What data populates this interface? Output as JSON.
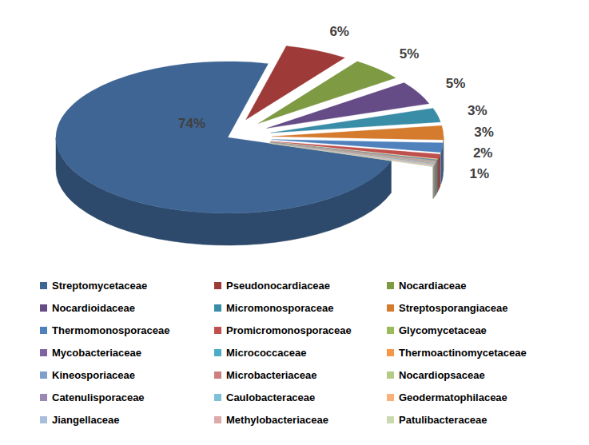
{
  "chart_data": {
    "type": "pie",
    "categories": [
      "Streptomycetaceae",
      "Pseudonocardiaceae",
      "Nocardiaceae",
      "Nocardioidaceae",
      "Micromonosporaceae",
      "Streptosporangiaceae",
      "Thermomonosporaceae",
      "Promicromonosporaceae",
      "Glycomycetaceae",
      "Mycobacteriaceae",
      "Micrococcaceae",
      "Thermoactinomycetaceae",
      "Kineosporiaceae",
      "Microbacteriaceae",
      "Nocardiopsaceae",
      "Catenulisporaceae",
      "Caulobacteraceae",
      "Geodermatophilaceae",
      "Jiangellaceae",
      "Methylobacteriaceae",
      "Patulibacteraceae"
    ],
    "values": [
      74,
      6,
      5,
      5,
      3,
      3,
      2,
      1,
      0.1,
      0.1,
      0.1,
      0.1,
      0.1,
      0.1,
      0.1,
      0.1,
      0.1,
      0.1,
      0.1,
      0.1,
      0.1
    ],
    "value_labels": [
      "74%",
      "6%",
      "5%",
      "5%",
      "3%",
      "3%",
      "2%",
      "1%",
      null,
      null,
      null,
      null,
      null,
      null,
      null,
      null,
      null,
      null,
      null,
      null,
      null
    ],
    "colors": [
      "#3F6594",
      "#9E3B38",
      "#7E9A43",
      "#654C86",
      "#3A8DA6",
      "#D57B2E",
      "#4F81BD",
      "#C0504D",
      "#9BBB59",
      "#8064A2",
      "#4BACC6",
      "#F79646",
      "#7F9FCB",
      "#CD7F7D",
      "#B3CB85",
      "#9C88B6",
      "#7DC1D6",
      "#F9B07A",
      "#A9BEDB",
      "#DCAAA9",
      "#CAD9AE"
    ],
    "data_labels": true,
    "legend": "bottom"
  }
}
